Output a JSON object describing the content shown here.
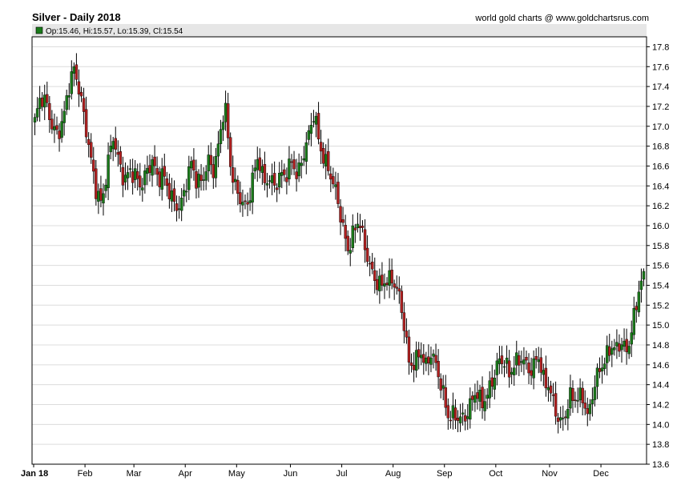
{
  "header": {
    "title": "Silver - Daily 2018",
    "source": "world gold charts @ www.goldchartsrus.com",
    "ohlc_legend": "Op:15.46, Hi:15.57, Lo:15.39, Cl:15.54"
  },
  "colors": {
    "up": "#1a7a1a",
    "down": "#b02020",
    "wick": "#000000",
    "grid": "#dcdcdc",
    "legend_bar": "#e6e6e6",
    "legend_swatch": "#1a7a1a"
  },
  "chart_data": {
    "type": "candlestick",
    "title": "Silver - Daily 2018",
    "ylim": [
      13.6,
      17.9
    ],
    "y_ticks": [
      "17.8",
      "17.6",
      "17.4",
      "17.2",
      "17.0",
      "16.8",
      "16.6",
      "16.4",
      "16.2",
      "16.0",
      "15.8",
      "15.6",
      "15.4",
      "15.2",
      "15.0",
      "14.8",
      "14.6",
      "14.4",
      "14.2",
      "14.0",
      "13.8",
      "13.6"
    ],
    "x_ticks": [
      "Jan 18",
      "Feb",
      "Mar",
      "Apr",
      "May",
      "Jun",
      "Jul",
      "Aug",
      "Sep",
      "Oct",
      "Nov",
      "Dec"
    ],
    "grid": true,
    "last_candle": {
      "open": 15.46,
      "high": 15.57,
      "low": 15.39,
      "close": 15.54
    },
    "monthly_close_path": [
      {
        "month": "Jan",
        "values": [
          17.05,
          17.25,
          17.2,
          17.0,
          16.95,
          17.1,
          17.4,
          17.55,
          17.3,
          17.0
        ]
      },
      {
        "month": "Feb",
        "values": [
          16.7,
          16.4,
          16.25,
          16.6,
          16.85,
          16.6,
          16.45,
          16.6,
          16.55
        ]
      },
      {
        "month": "Mar",
        "values": [
          16.4,
          16.5,
          16.6,
          16.45,
          16.55,
          16.4,
          16.25,
          16.15
        ]
      },
      {
        "month": "Apr",
        "values": [
          16.35,
          16.6,
          16.45,
          16.5,
          16.7,
          16.55,
          16.8,
          17.2,
          16.6
        ]
      },
      {
        "month": "May",
        "values": [
          16.4,
          16.3,
          16.2,
          16.45,
          16.65,
          16.4,
          16.5,
          16.45,
          16.55
        ]
      },
      {
        "month": "Jun",
        "values": [
          16.5,
          16.6,
          16.45,
          16.7,
          16.95,
          17.2,
          16.8,
          16.6,
          16.45
        ]
      },
      {
        "month": "Jul",
        "values": [
          16.3,
          16.05,
          15.8,
          15.95,
          16.05,
          15.75,
          15.55,
          15.45
        ]
      },
      {
        "month": "Aug",
        "values": [
          15.45,
          15.5,
          15.45,
          15.3,
          15.0,
          14.6,
          14.65,
          14.8,
          14.6,
          14.7,
          14.5
        ]
      },
      {
        "month": "Sep",
        "values": [
          14.3,
          14.1,
          14.15,
          14.1,
          14.05,
          14.15,
          14.3,
          14.2,
          14.35
        ]
      },
      {
        "month": "Oct",
        "values": [
          14.5,
          14.65,
          14.6,
          14.45,
          14.6,
          14.7,
          14.65,
          14.55,
          14.7
        ]
      },
      {
        "month": "Nov",
        "values": [
          14.4,
          14.35,
          14.2,
          14.05,
          14.15,
          14.3,
          14.2,
          14.25,
          14.05
        ]
      },
      {
        "month": "Dec",
        "values": [
          14.4,
          14.6,
          14.65,
          14.75,
          14.7,
          14.8,
          14.75,
          15.05,
          15.35,
          15.54
        ]
      }
    ]
  }
}
